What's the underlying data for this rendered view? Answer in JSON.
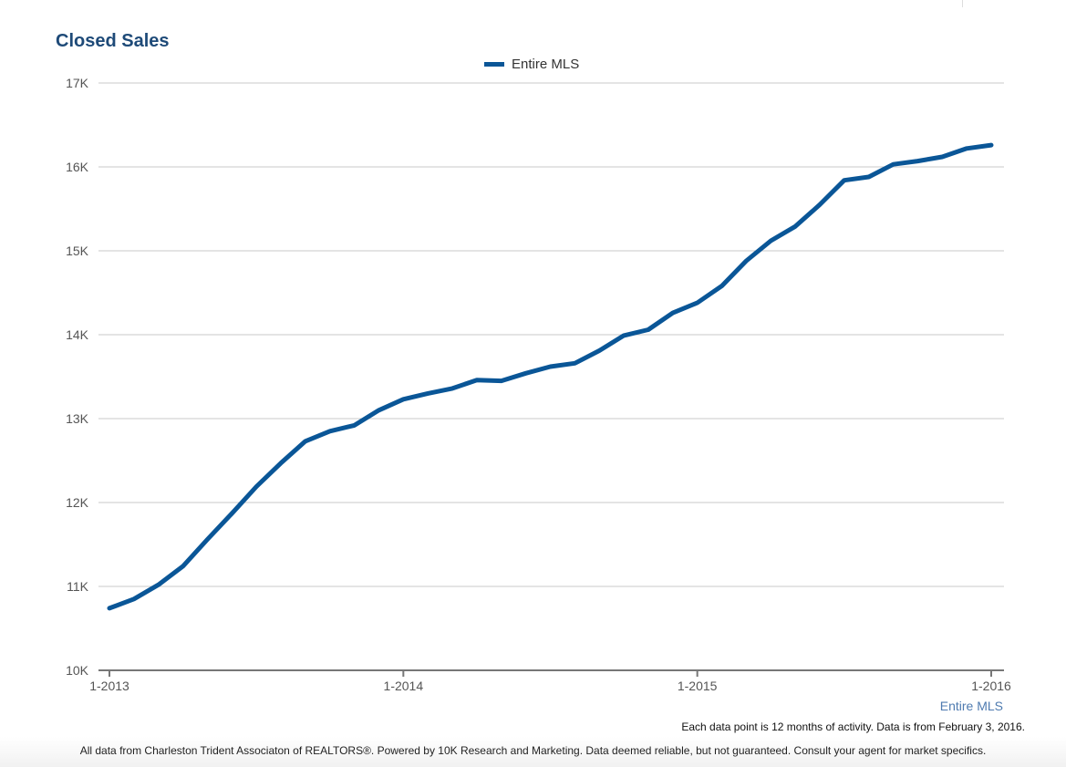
{
  "page": {
    "note": "Each data point is 12 months of activity. Data is from February 3, 2016.",
    "footer": "All data from Charleston Trident Associaton of REALTORS®. Powered by 10K Research and Marketing. Data deemed reliable, but not guaranteed. Consult your agent for market specifics."
  },
  "chart_data": {
    "type": "line",
    "title": "Closed Sales",
    "xlabel": "Entire MLS",
    "ylabel": "",
    "ylim": [
      10000,
      17000
    ],
    "yticks": [
      10000,
      11000,
      12000,
      13000,
      14000,
      15000,
      16000,
      17000
    ],
    "ytick_labels": [
      "10K",
      "11K",
      "12K",
      "13K",
      "14K",
      "15K",
      "16K",
      "17K"
    ],
    "xtick_labels": [
      "1-2013",
      "1-2014",
      "1-2015",
      "1-2016"
    ],
    "grid": true,
    "legend_position": "top-center",
    "line_color": "#0a5697",
    "title_color": "#1e4a78",
    "x": [
      "1-2013",
      "2-2013",
      "3-2013",
      "4-2013",
      "5-2013",
      "6-2013",
      "7-2013",
      "8-2013",
      "9-2013",
      "10-2013",
      "11-2013",
      "12-2013",
      "1-2014",
      "2-2014",
      "3-2014",
      "4-2014",
      "5-2014",
      "6-2014",
      "7-2014",
      "8-2014",
      "9-2014",
      "10-2014",
      "11-2014",
      "12-2014",
      "1-2015",
      "2-2015",
      "3-2015",
      "4-2015",
      "5-2015",
      "6-2015",
      "7-2015",
      "8-2015",
      "9-2015",
      "10-2015",
      "11-2015",
      "12-2015",
      "1-2016"
    ],
    "series": [
      {
        "name": "Entire MLS",
        "values": [
          10740,
          10850,
          11020,
          11240,
          11560,
          11870,
          12190,
          12470,
          12730,
          12850,
          12920,
          13100,
          13230,
          13300,
          13360,
          13460,
          13450,
          13540,
          13620,
          13660,
          13810,
          13990,
          14060,
          14260,
          14380,
          14580,
          14880,
          15120,
          15290,
          15550,
          15840,
          15880,
          16030,
          16070,
          16120,
          16220,
          16260
        ]
      }
    ]
  }
}
